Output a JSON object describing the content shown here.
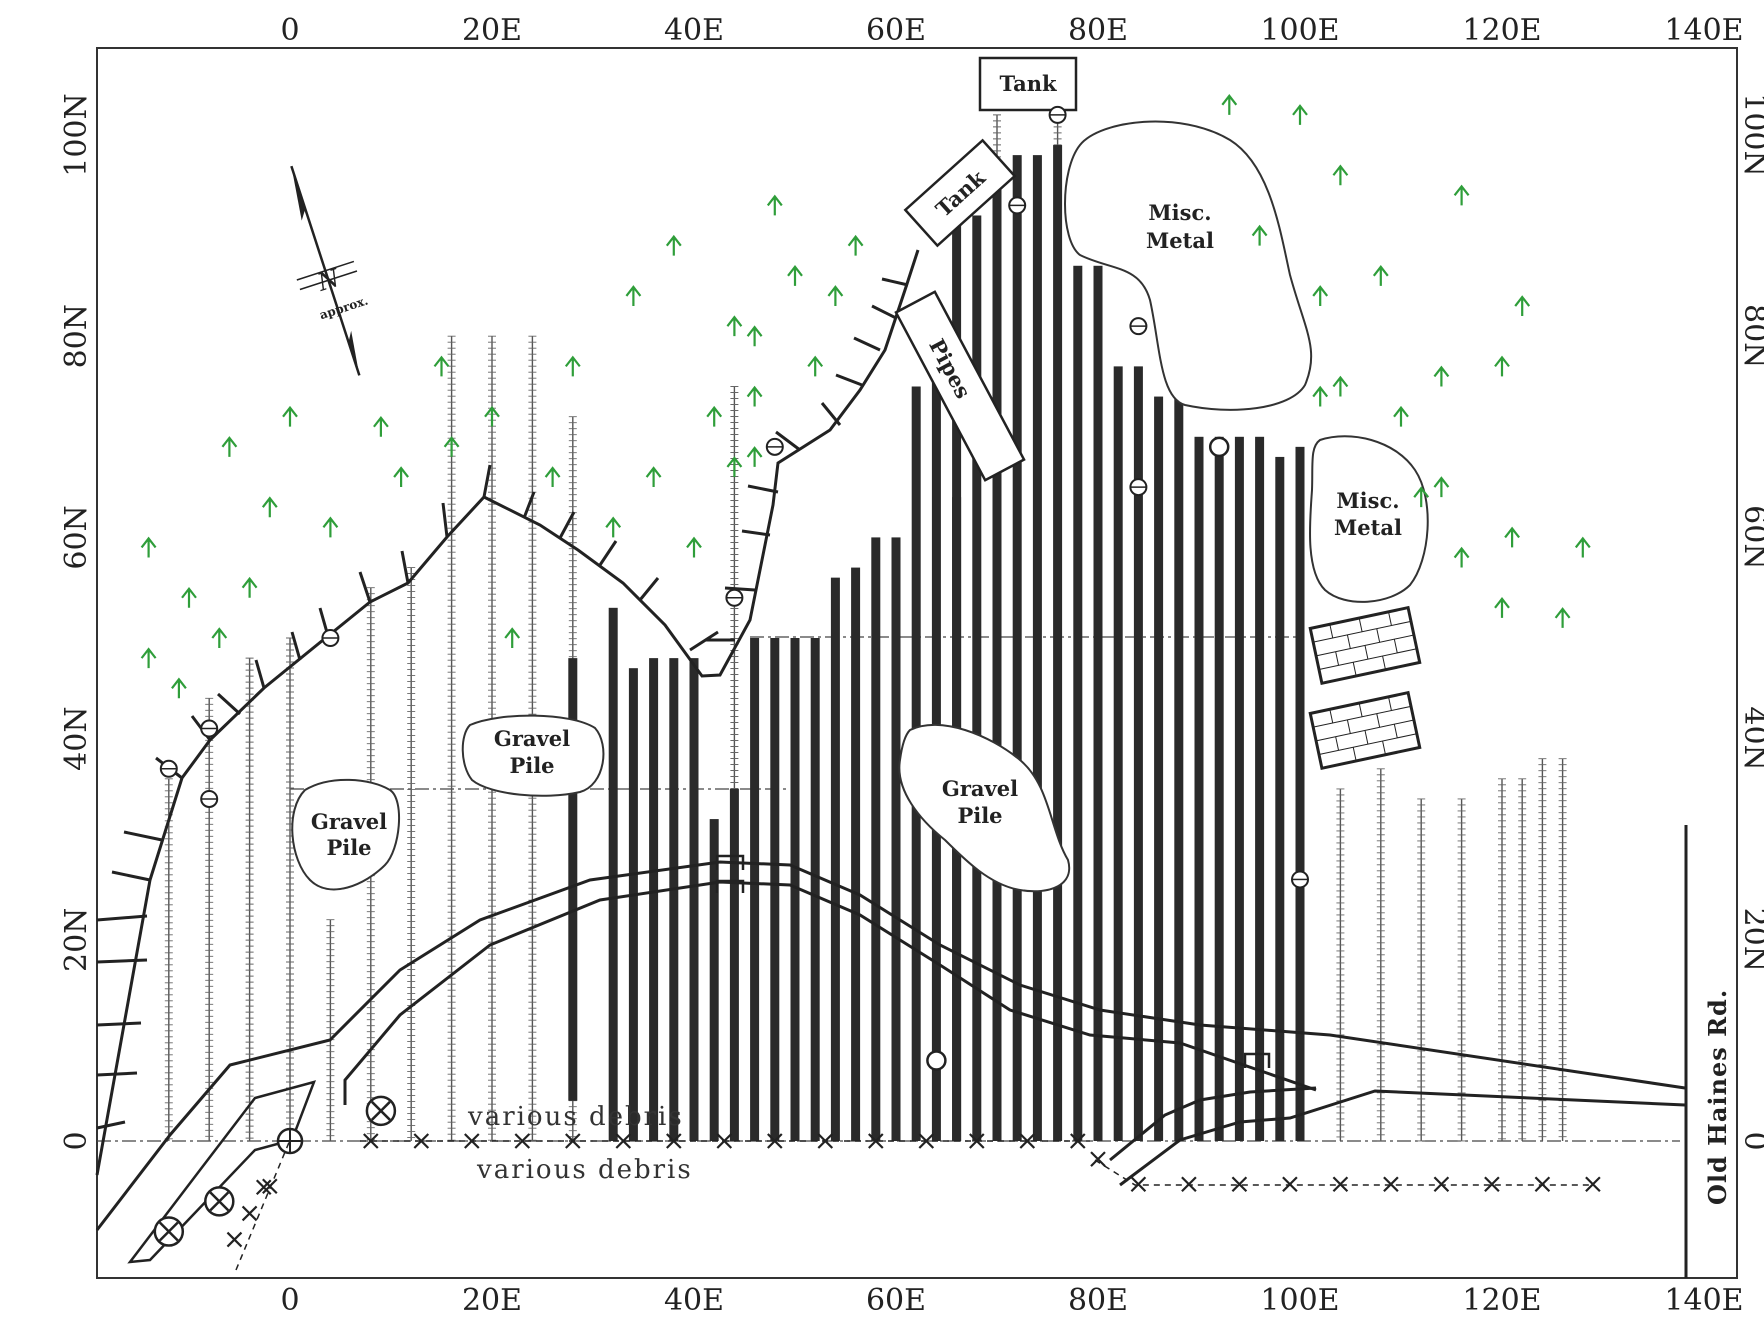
{
  "x_ticks": [
    {
      "value": 0,
      "label": "0"
    },
    {
      "value": 20,
      "label": "20E"
    },
    {
      "value": 40,
      "label": "40E"
    },
    {
      "value": 60,
      "label": "60E"
    },
    {
      "value": 80,
      "label": "80E"
    },
    {
      "value": 100,
      "label": "100E"
    },
    {
      "value": 120,
      "label": "120E"
    },
    {
      "value": 140,
      "label": "140E"
    }
  ],
  "y_ticks": [
    {
      "value": 0,
      "label": "0"
    },
    {
      "value": 20,
      "label": "20N"
    },
    {
      "value": 40,
      "label": "40N"
    },
    {
      "value": 60,
      "label": "60N"
    },
    {
      "value": 80,
      "label": "80N"
    },
    {
      "value": 100,
      "label": "100N"
    }
  ],
  "north_arrow": {
    "symbol": "N",
    "note": "approx."
  },
  "features": {
    "tank_top": "Tank",
    "tank_tilted": "Tank",
    "pipes": "Pipes",
    "misc_metal_1": [
      "Misc.",
      "Metal"
    ],
    "misc_metal_2": [
      "Misc.",
      "Metal"
    ],
    "gravel_pile_1": [
      "Gravel",
      "Pile"
    ],
    "gravel_pile_2": [
      "Gravel",
      "Pile"
    ],
    "gravel_pile_3": [
      "Gravel",
      "Pile"
    ],
    "debris_1": "various debris",
    "debris_2": "various debris",
    "road": "Old Haines Rd."
  },
  "colors": {
    "trees": "#2f9e3a",
    "ink": "#222222"
  },
  "icons": [
    "north-arrow-icon",
    "tree-icon",
    "survey-point-icon",
    "crossed-marker-icon",
    "x-marker-icon",
    "culvert-icon",
    "brick-structure-icon"
  ]
}
